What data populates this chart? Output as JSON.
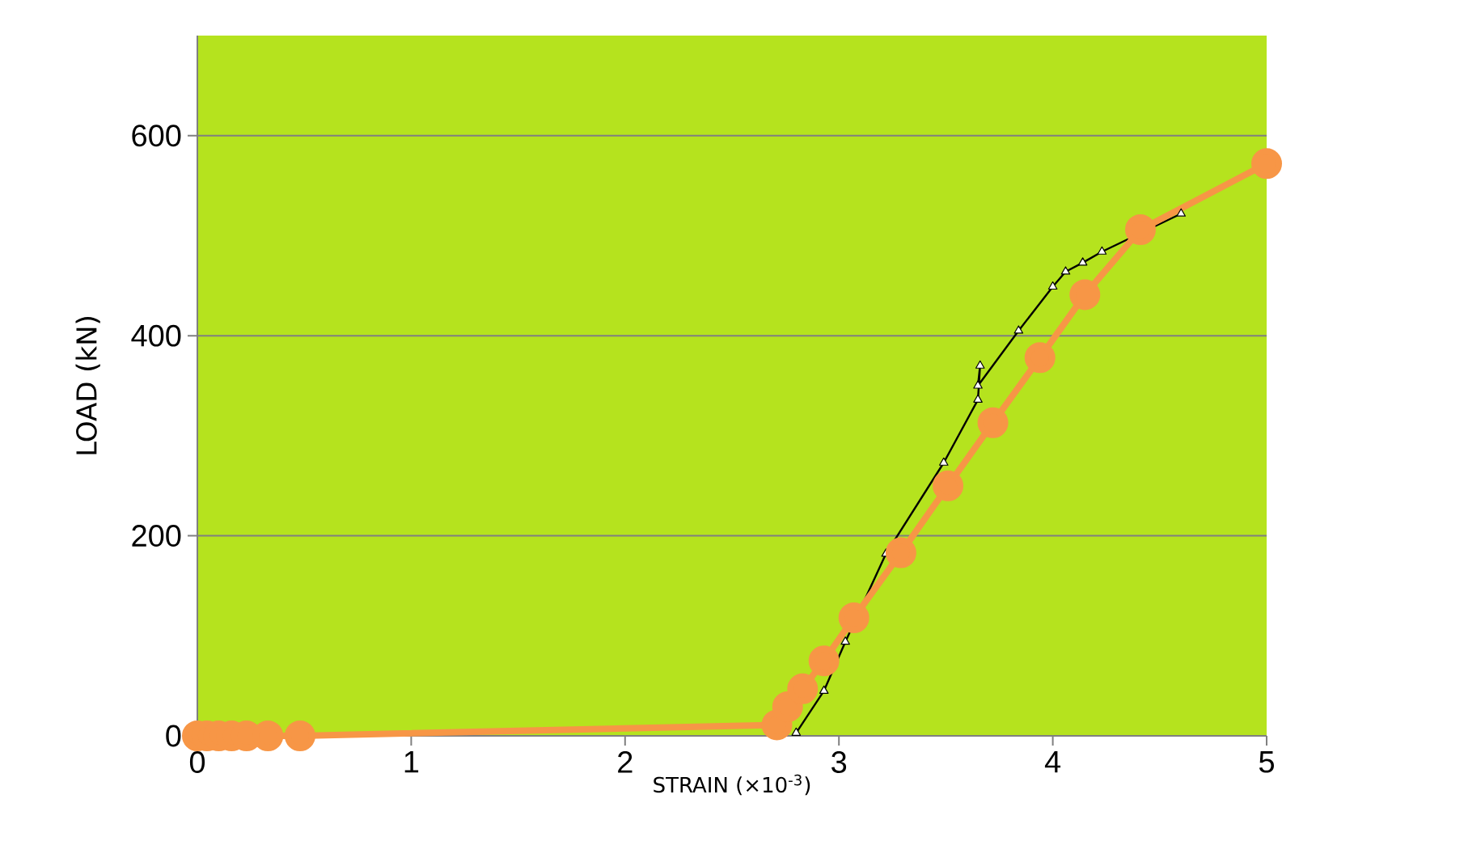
{
  "chart_data": {
    "type": "line",
    "xlabel": "STRAIN (×10$^{-3}$)",
    "ylabel": "LOAD (kN)",
    "xlim": [
      0,
      5
    ],
    "ylim": [
      0,
      700
    ],
    "xticks": [
      0,
      1,
      2,
      3,
      4,
      5
    ],
    "yticks": [
      0,
      200,
      400,
      600
    ],
    "grid": "y",
    "series": [
      {
        "color": "#000000",
        "marker": "triangle",
        "x": [
          2.8,
          2.93,
          3.03,
          3.22,
          3.49,
          3.65,
          3.66,
          3.65,
          3.84,
          4.0,
          4.06,
          4.14,
          4.23,
          4.6
        ],
        "values": [
          3,
          45,
          94,
          182,
          273,
          336,
          370,
          350,
          405,
          449,
          464,
          473,
          484,
          522
        ]
      },
      {
        "color": "#f79646",
        "marker": "circle",
        "x": [
          0,
          0.045,
          0.1,
          0.16,
          0.23,
          0.33,
          0.48,
          2.71,
          2.76,
          2.83,
          2.93,
          3.07,
          3.29,
          3.51,
          3.72,
          3.94,
          4.15,
          4.41,
          5
        ],
        "values": [
          0,
          0,
          0,
          0,
          0,
          0,
          0,
          11,
          29,
          47,
          75,
          118,
          183,
          250,
          313,
          378,
          441,
          506,
          572
        ]
      }
    ]
  }
}
